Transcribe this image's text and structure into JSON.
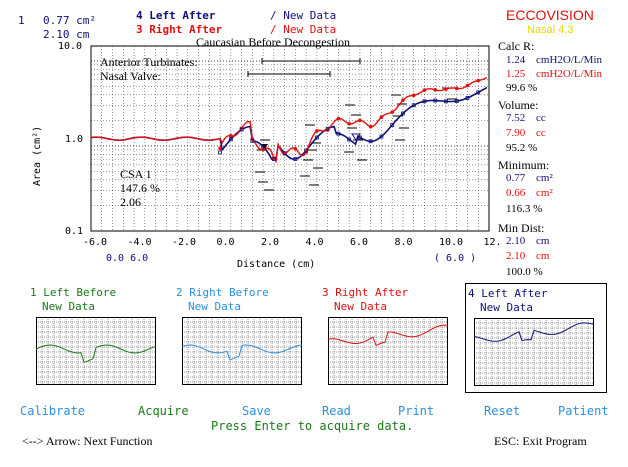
{
  "header": {
    "scale_top_index": "1",
    "scale_top_value": "0.77 cm²",
    "scale_bottom_value": "2.10 cm",
    "legend_left_after": "4 Left After",
    "legend_right_after": "3 Right After",
    "legend_new_data_1": "/ New Data",
    "legend_new_data_2": "/ New Data",
    "app_name": "ECCOVISION",
    "app_version": "Nasal 4.3"
  },
  "plot": {
    "title": "Caucasian Before Decongestion",
    "ref_anterior": "Anterior Turbinates:",
    "ref_nasal_valve": "Nasal Valve:",
    "y_axis_label": "Area (cm²)",
    "y_tick_10": "10.0",
    "y_tick_1": "1.0",
    "y_tick_01": "0.1",
    "x_axis_label": "Distance (cm)",
    "x_ticks": [
      "-6.0",
      "-4.0",
      "-2.0",
      "0.0",
      "2.0",
      "4.0",
      "6.0",
      "8.0",
      "10.0",
      "12."
    ],
    "x_sub_left": "0.0 6.0",
    "x_sub_right": "( 6.0 )",
    "csa_label": "CSA 1",
    "csa_pct": "147.6 %",
    "csa_value": "2.06"
  },
  "stats": {
    "calc_r_label": "Calc R:",
    "calc_r_left": "1.24",
    "calc_r_left_unit": "cmH2O/L/Min",
    "calc_r_right": "1.25",
    "calc_r_right_unit": "cmH2O/L/Min",
    "calc_r_pct": "99.6 %",
    "volume_label": "Volume:",
    "volume_left": "7.52",
    "volume_left_unit": "cc",
    "volume_right": "7.90",
    "volume_right_unit": "cc",
    "volume_pct": "95.2 %",
    "minimum_label": "Minimum:",
    "minimum_left": "0.77",
    "minimum_left_unit": "cm²",
    "minimum_right": "0.66",
    "minimum_right_unit": "cm²",
    "minimum_pct": "116.3 %",
    "min_dist_label": "Min Dist:",
    "min_dist_left": "2.10",
    "min_dist_left_unit": "cm",
    "min_dist_right": "2.10",
    "min_dist_right_unit": "cm",
    "min_dist_pct": "100.0 %"
  },
  "thumbnails": [
    {
      "title": "1 Left Before",
      "subtitle": "New Data",
      "color": "#1a7a1a"
    },
    {
      "title": "2 Right Before",
      "subtitle": "New Data",
      "color": "#2b8fe0"
    },
    {
      "title": "3 Right After",
      "subtitle": "New Data",
      "color": "#e01010"
    },
    {
      "title": "4 Left After",
      "subtitle": "New Data",
      "color": "#10107a"
    }
  ],
  "function_keys": [
    {
      "label": "Calibrate",
      "color": "#2b8fe0"
    },
    {
      "label": "Acquire",
      "color": "#1a7a1a"
    },
    {
      "label": "Save",
      "color": "#2b8fe0"
    },
    {
      "label": "Read",
      "color": "#2b8fe0"
    },
    {
      "label": "Print",
      "color": "#2b8fe0"
    },
    {
      "label": "Reset",
      "color": "#2b8fe0"
    },
    {
      "label": "Patient",
      "color": "#2b8fe0"
    }
  ],
  "status": {
    "prompt": "Press Enter to acquire data.",
    "nav_hint": "<--> Arrow: Next Function",
    "exit_hint": "ESC: Exit Program"
  },
  "colors": {
    "navy": "#10107a",
    "red": "#e01010",
    "green": "#1a7a1a",
    "light_blue": "#2b8fe0",
    "app_name": "#e01010",
    "app_version": "#e8d800"
  }
}
